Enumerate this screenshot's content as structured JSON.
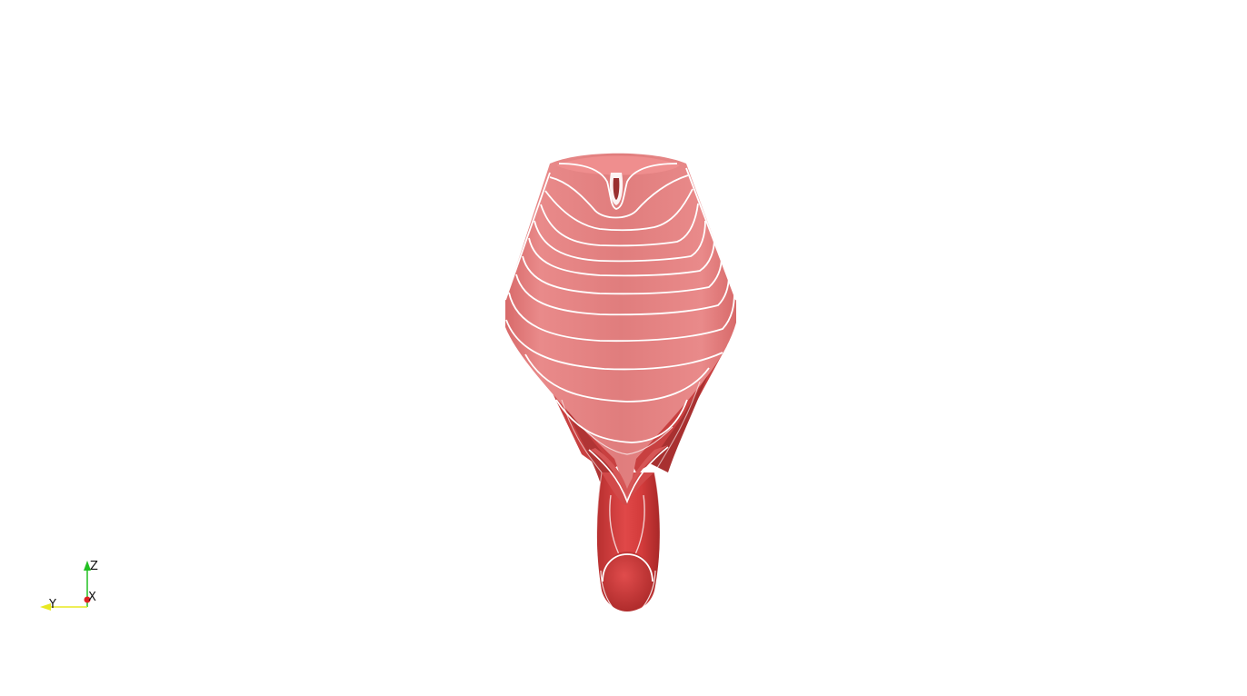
{
  "scene": {
    "object_name": "surface-mesh",
    "surface_color": "#e07878",
    "surface_light_color": "#ec8c8c",
    "surface_shadow_color": "#c83a3a",
    "contour_color": "#ffffff",
    "background_color": "#ffffff"
  },
  "orientation_axes": {
    "z_label": "Z",
    "y_label": "Y",
    "x_label": "X",
    "z_color": "#22c022",
    "y_color": "#e8e820",
    "x_color": "#e02020"
  }
}
